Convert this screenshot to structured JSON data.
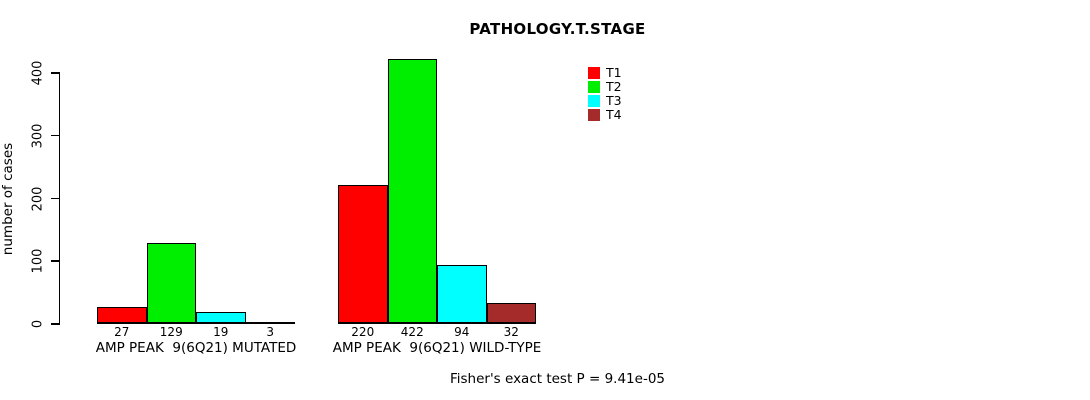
{
  "chart_data": {
    "type": "bar",
    "title": "PATHOLOGY.T.STAGE",
    "xlabel": "",
    "ylabel": "number of cases",
    "ylim": [
      0,
      400
    ],
    "yticks": [
      0,
      100,
      200,
      300,
      400
    ],
    "grid": false,
    "legend_position": "top-right",
    "categories": [
      "AMP PEAK  9(6Q21) MUTATED",
      "AMP PEAK  9(6Q21) WILD-TYPE"
    ],
    "series": [
      {
        "name": "T1",
        "color": "#ff0000",
        "values": [
          27,
          220
        ]
      },
      {
        "name": "T2",
        "color": "#00ee00",
        "values": [
          129,
          422
        ]
      },
      {
        "name": "T3",
        "color": "#00ffff",
        "values": [
          19,
          94
        ]
      },
      {
        "name": "T4",
        "color": "#a52a2a",
        "values": [
          3,
          32
        ]
      }
    ],
    "bar_value_labels": true,
    "annotation": "Fisher's exact test P = 9.41e-05"
  },
  "colors": {
    "axis": "#000000",
    "background": "#ffffff",
    "text": "#000000"
  }
}
